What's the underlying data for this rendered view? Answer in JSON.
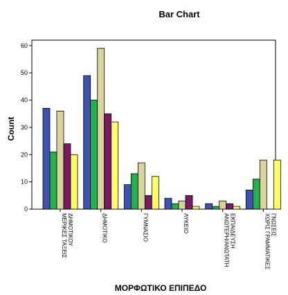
{
  "chart_data": {
    "type": "bar",
    "title": "Bar Chart",
    "xlabel": "ΜΟΡΦΩΤΙΚΟ ΕΠΙΠΕΔΟ",
    "ylabel": "Count",
    "ylim": [
      0,
      62
    ],
    "yticks": [
      0,
      10,
      20,
      30,
      40,
      50,
      60
    ],
    "grid": false,
    "categories": [
      [
        "ΜΕΡΙΚΕΣ ΤΑΞΕΙΣ",
        "ΔΗΜΟΤΙΚΟΥ"
      ],
      [
        "ΔΗΜΟΤΙΚΟ"
      ],
      [
        "ΓΥΜΝΑΣΙΟ"
      ],
      [
        "ΛΥΚΕΙΟ"
      ],
      [
        "ΑΝΩΤΕΡΗ/ΑΝΩΤΑΤΗ",
        "ΕΚΠΑΙΔΕΥΣΗ"
      ],
      [
        "ΧΩΡΙΣ ΓΡΑΜΜΑΤΙΚΕΣ",
        "ΓΝΩΣΕΙΣ"
      ]
    ],
    "series": [
      {
        "color": "#3f51b1",
        "values": [
          37,
          49,
          9,
          4,
          2,
          7
        ]
      },
      {
        "color": "#22b14c",
        "values": [
          21,
          40,
          13,
          2,
          1,
          11
        ]
      },
      {
        "color": "#d9d59a",
        "values": [
          36,
          59,
          17,
          3,
          3,
          18
        ]
      },
      {
        "color": "#7a1a66",
        "values": [
          24,
          35,
          5,
          5,
          2,
          0
        ]
      },
      {
        "color": "#ffff66",
        "values": [
          20,
          32,
          12,
          1,
          1,
          18
        ]
      }
    ]
  }
}
